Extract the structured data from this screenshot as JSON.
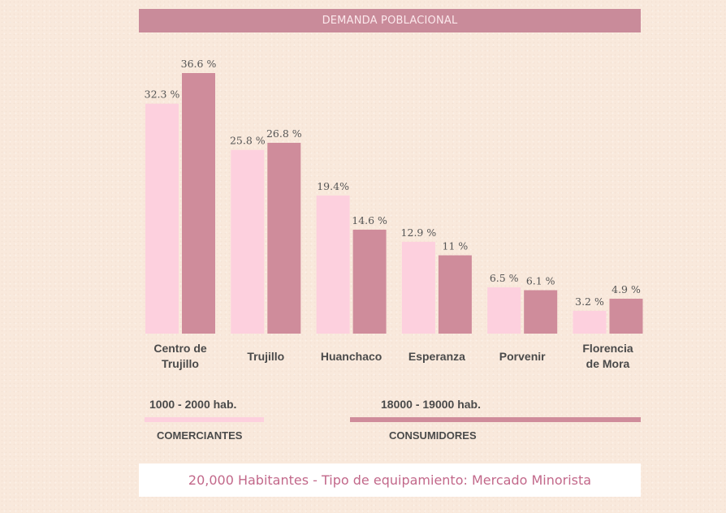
{
  "colors": {
    "comerciantes": "#fdd0de",
    "consumidores": "#cf8c9b",
    "title_bg": "#c98b9a"
  },
  "chart_data": {
    "type": "bar",
    "title": "DEMANDA POBLACIONAL",
    "categories": [
      [
        "Centro de",
        "Trujillo"
      ],
      [
        "Trujillo"
      ],
      [
        "Huanchaco"
      ],
      [
        "Esperanza"
      ],
      [
        "Porvenir"
      ],
      [
        "Florencia",
        "de Mora"
      ]
    ],
    "series": [
      {
        "name": "COMERCIANTES",
        "values": [
          32.3,
          25.8,
          19.4,
          12.9,
          6.5,
          3.2
        ],
        "labels": [
          "32.3 %",
          "25.8 %",
          "19.4%",
          "12.9 %",
          "6.5 %",
          "3.2 %"
        ]
      },
      {
        "name": "CONSUMIDORES",
        "values": [
          36.6,
          26.8,
          14.6,
          11,
          6.1,
          4.9
        ],
        "labels": [
          "36.6 %",
          "26.8 %",
          "14.6 %",
          "11 %",
          "6.1 %",
          "4.9 %"
        ]
      }
    ],
    "ylim": [
      0,
      40
    ],
    "grid": false
  },
  "legend": {
    "comerciantes": {
      "range": "1000 - 2000 hab.",
      "name": "COMERCIANTES"
    },
    "consumidores": {
      "range": "18000 - 19000 hab.",
      "name": "CONSUMIDORES"
    }
  },
  "footer": {
    "text": "20,000 Habitantes - Tipo de equipamiento: Mercado Minorista"
  }
}
